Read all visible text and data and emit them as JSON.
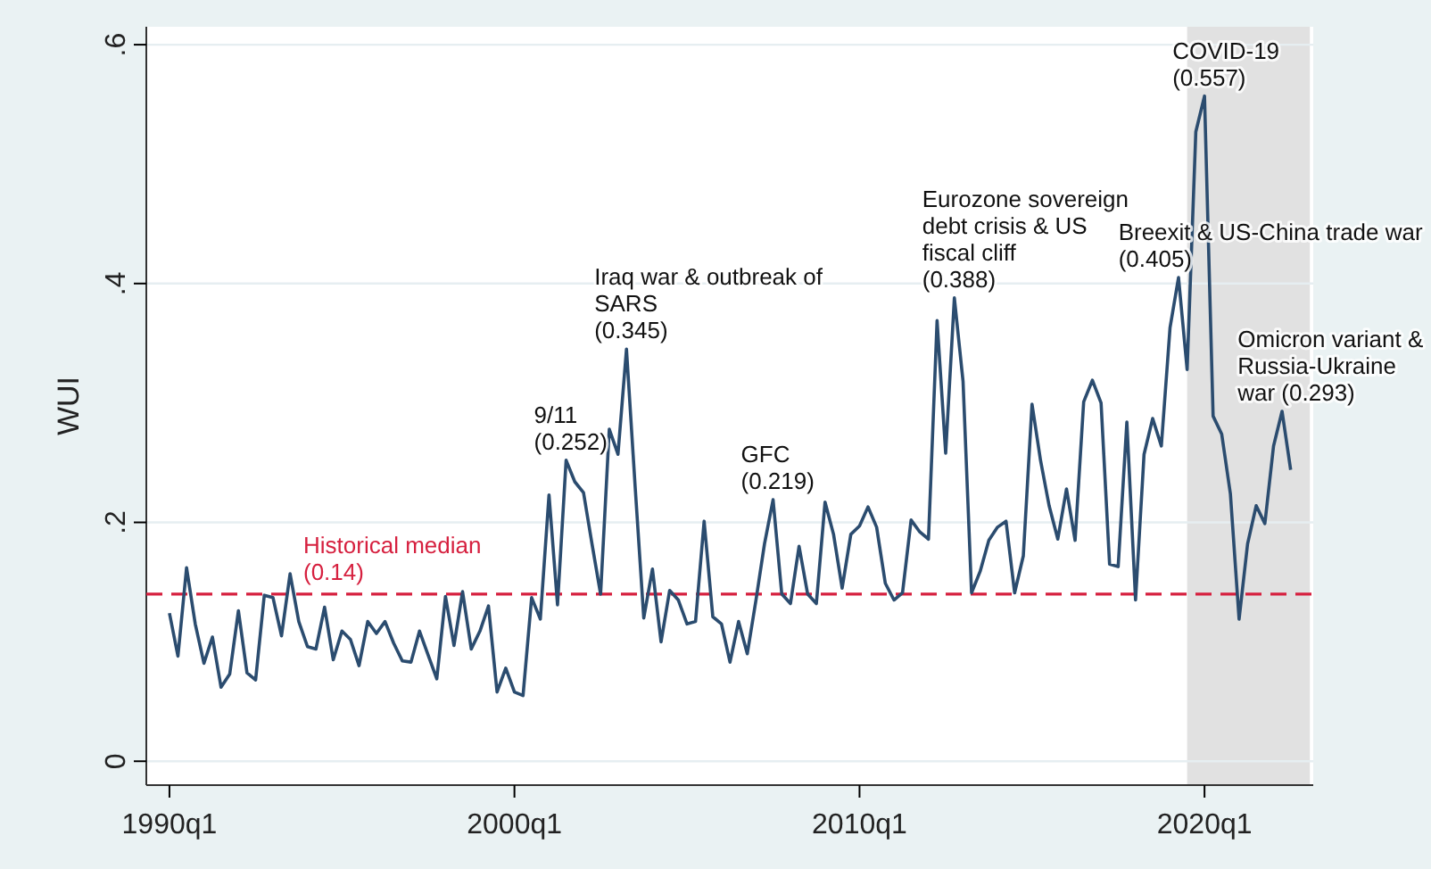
{
  "chart_data": {
    "type": "line",
    "ylabel": "WUI",
    "x": [
      "1990-01",
      "1990-04",
      "1990-07",
      "1990-10",
      "1991-01",
      "1991-04",
      "1991-07",
      "1991-10",
      "1992-01",
      "1992-04",
      "1992-07",
      "1992-10",
      "1993-01",
      "1993-04",
      "1993-07",
      "1993-10",
      "1994-01",
      "1994-04",
      "1994-07",
      "1994-10",
      "1995-01",
      "1995-04",
      "1995-07",
      "1995-10",
      "1996-01",
      "1996-04",
      "1996-07",
      "1996-10",
      "1997-01",
      "1997-04",
      "1997-07",
      "1997-10",
      "1998-01",
      "1998-04",
      "1998-07",
      "1998-10",
      "1999-01",
      "1999-04",
      "1999-07",
      "1999-10",
      "2000-01",
      "2000-04",
      "2000-07",
      "2000-10",
      "2001-01",
      "2001-04",
      "2001-07",
      "2001-10",
      "2002-01",
      "2002-04",
      "2002-07",
      "2002-10",
      "2003-01",
      "2003-04",
      "2003-07",
      "2003-10",
      "2004-01",
      "2004-04",
      "2004-07",
      "2004-10",
      "2005-01",
      "2005-04",
      "2005-07",
      "2005-10",
      "2006-01",
      "2006-04",
      "2006-07",
      "2006-10",
      "2007-01",
      "2007-04",
      "2007-07",
      "2007-10",
      "2008-01",
      "2008-04",
      "2008-07",
      "2008-10",
      "2009-01",
      "2009-04",
      "2009-07",
      "2009-10",
      "2010-01",
      "2010-04",
      "2010-07",
      "2010-10",
      "2011-01",
      "2011-04",
      "2011-07",
      "2011-10",
      "2012-01",
      "2012-04",
      "2012-07",
      "2012-10",
      "2013-01",
      "2013-04",
      "2013-07",
      "2013-10",
      "2014-01",
      "2014-04",
      "2014-07",
      "2014-10",
      "2015-01",
      "2015-04",
      "2015-07",
      "2015-10",
      "2016-01",
      "2016-04",
      "2016-07",
      "2016-10",
      "2017-01",
      "2017-04",
      "2017-07",
      "2017-10",
      "2018-01",
      "2018-04",
      "2018-07",
      "2018-10",
      "2019-01",
      "2019-04",
      "2019-07",
      "2019-10",
      "2020-01",
      "2020-04",
      "2020-07",
      "2020-10",
      "2021-01",
      "2021-04",
      "2021-07",
      "2021-10",
      "2022-01",
      "2022-04",
      "2022-07"
    ],
    "series": [
      {
        "color": "#2b4c6f",
        "values": [
          0.124,
          0.088,
          0.162,
          0.115,
          0.082,
          0.104,
          0.062,
          0.073,
          0.126,
          0.074,
          0.068,
          0.139,
          0.137,
          0.105,
          0.157,
          0.117,
          0.096,
          0.094,
          0.129,
          0.085,
          0.109,
          0.102,
          0.08,
          0.117,
          0.107,
          0.117,
          0.099,
          0.084,
          0.083,
          0.109,
          0.089,
          0.069,
          0.138,
          0.097,
          0.142,
          0.094,
          0.109,
          0.13,
          0.058,
          0.078,
          0.058,
          0.055,
          0.137,
          0.119,
          0.223,
          0.131,
          0.252,
          0.234,
          0.225,
          0.182,
          0.14,
          0.278,
          0.257,
          0.345,
          0.231,
          0.12,
          0.161,
          0.1,
          0.143,
          0.135,
          0.115,
          0.117,
          0.201,
          0.121,
          0.115,
          0.083,
          0.117,
          0.09,
          0.135,
          0.182,
          0.219,
          0.14,
          0.132,
          0.18,
          0.14,
          0.132,
          0.217,
          0.19,
          0.145,
          0.19,
          0.197,
          0.213,
          0.196,
          0.149,
          0.135,
          0.141,
          0.202,
          0.192,
          0.186,
          0.369,
          0.258,
          0.388,
          0.318,
          0.141,
          0.159,
          0.185,
          0.196,
          0.201,
          0.141,
          0.172,
          0.299,
          0.252,
          0.214,
          0.186,
          0.228,
          0.185,
          0.301,
          0.319,
          0.3,
          0.165,
          0.163,
          0.284,
          0.135,
          0.257,
          0.287,
          0.264,
          0.363,
          0.405,
          0.328,
          0.527,
          0.557,
          0.289,
          0.274,
          0.224,
          0.119,
          0.182,
          0.214,
          0.199,
          0.264,
          0.293,
          0.244
        ]
      }
    ],
    "xlim": [
      "1989-05",
      "2023-02-25"
    ],
    "xticks": [
      {
        "value": "1990-01",
        "label": "1990q1"
      },
      {
        "value": "2000-01",
        "label": "2000q1"
      },
      {
        "value": "2010-01",
        "label": "2010q1"
      },
      {
        "value": "2020-01",
        "label": "2020q1"
      }
    ],
    "ylim": [
      -0.02,
      0.615
    ],
    "yticks": [
      {
        "value": 0,
        "label": "0"
      },
      {
        "value": 0.2,
        "label": ".2"
      },
      {
        "value": 0.4,
        "label": ".4"
      },
      {
        "value": 0.6,
        "label": ".6"
      }
    ],
    "grid": "y",
    "marker": "none",
    "line_style": "solid",
    "ref_lines": [
      {
        "axis": "y",
        "value": 0.14,
        "label": "Historical median\n(0.14)",
        "color": "#d6203f",
        "line_style": "dashed"
      }
    ],
    "bands": [
      {
        "axis": "x",
        "from": "2019-07",
        "to": "2023-01-20",
        "color": "#dcdcdc"
      }
    ],
    "annotations": [
      {
        "text": "9/11\n(0.252)",
        "x": "2001-07",
        "y": 0.252
      },
      {
        "text": "Iraq war & outbreak of\nSARS\n(0.345)",
        "x": "2003-04",
        "y": 0.345
      },
      {
        "text": "GFC\n(0.219)",
        "x": "2007-07",
        "y": 0.219
      },
      {
        "text": "Eurozone sovereign\ndebt crisis & US\nfiscal cliff\n(0.388)",
        "x": "2012-10",
        "y": 0.388
      },
      {
        "text": "Breexit & US-China trade war\n(0.405)",
        "x": "2019-04",
        "y": 0.405
      },
      {
        "text": "COVID-19\n(0.557)",
        "x": "2020-01",
        "y": 0.557
      },
      {
        "text": "Omicron variant &\nRussia-Ukraine\nwar (0.293)",
        "x": "2022-04",
        "y": 0.293
      }
    ]
  }
}
